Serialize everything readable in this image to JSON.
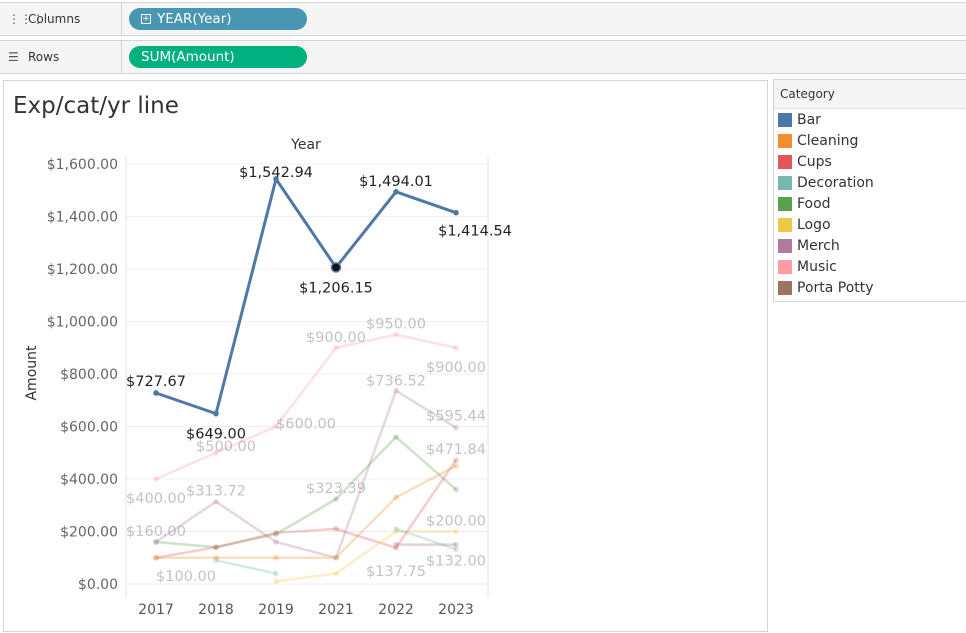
{
  "shelves": {
    "columns": {
      "label": "Columns",
      "icon": "columns-icon",
      "pill": "YEAR(Year)",
      "pill_color": "#4996b2"
    },
    "rows": {
      "label": "Rows",
      "icon": "rows-icon",
      "pill": "SUM(Amount)",
      "pill_color": "#00b180"
    }
  },
  "viz": {
    "title": "Exp/cat/yr line"
  },
  "legend": {
    "title": "Category",
    "items": [
      {
        "label": "Bar",
        "color": "#4e79a7"
      },
      {
        "label": "Cleaning",
        "color": "#f28e2b"
      },
      {
        "label": "Cups",
        "color": "#e15759"
      },
      {
        "label": "Decoration",
        "color": "#76b7b2"
      },
      {
        "label": "Food",
        "color": "#59a14f"
      },
      {
        "label": "Logo",
        "color": "#edc948"
      },
      {
        "label": "Merch",
        "color": "#b07aa1"
      },
      {
        "label": "Music",
        "color": "#ff9da7"
      },
      {
        "label": "Porta Potty",
        "color": "#9c755f"
      }
    ]
  },
  "chart_data": {
    "type": "line",
    "title": "Exp/cat/yr line",
    "xlabel": "Year",
    "ylabel": "Amount",
    "categories": [
      "2017",
      "2018",
      "2019",
      "2021",
      "2022",
      "2023"
    ],
    "y_ticks": [
      "$0.00",
      "$200.00",
      "$400.00",
      "$600.00",
      "$800.00",
      "$1,000.00",
      "$1,200.00",
      "$1,400.00",
      "$1,600.00"
    ],
    "ylim": [
      0,
      1600
    ],
    "grid": true,
    "legend_position": "right",
    "highlighted_series": "Bar",
    "series": [
      {
        "name": "Bar",
        "color": "#4e79a7",
        "values": [
          727.67,
          649.0,
          1542.94,
          1206.15,
          1494.01,
          1414.54
        ],
        "labels": [
          "$727.67",
          "$649.00",
          "$1,542.94",
          "$1,206.15",
          "$1,494.01",
          "$1,414.54"
        ],
        "selected_index": 3
      },
      {
        "name": "Music",
        "color": "#ff9da7",
        "values": [
          400.0,
          500.0,
          600.0,
          900.0,
          950.0,
          900.0
        ],
        "labels": [
          "$400.00",
          "$500.00",
          "$600.00",
          "$900.00",
          "$950.00",
          "$900.00"
        ]
      },
      {
        "name": "Merch",
        "color": "#b07aa1",
        "values": [
          160.0,
          313.72,
          160,
          100,
          736.52,
          595.44
        ],
        "labels": [
          "$160.00",
          "$313.72",
          "",
          "",
          "$736.52",
          "$595.44"
        ]
      },
      {
        "name": "Food",
        "color": "#59a14f",
        "values": [
          160,
          140,
          190,
          323.39,
          560,
          360
        ],
        "labels": [
          "",
          "",
          "",
          "$323.39",
          "",
          ""
        ]
      },
      {
        "name": "Cups",
        "color": "#e15759",
        "values": [
          100,
          140,
          195,
          210,
          137.75,
          471.84
        ],
        "labels": [
          "",
          "",
          "",
          "",
          "$137.75",
          "$471.84"
        ]
      },
      {
        "name": "Cleaning",
        "color": "#f28e2b",
        "values": [
          100,
          100,
          100,
          100,
          330,
          450
        ],
        "labels": [
          "$100.00",
          "",
          "",
          "",
          "",
          ""
        ]
      },
      {
        "name": "Logo",
        "color": "#edc948",
        "values": [
          null,
          null,
          10,
          40,
          200.0,
          200.0
        ],
        "labels": [
          "",
          "",
          "",
          "",
          "",
          "$200.00"
        ]
      },
      {
        "name": "Decoration",
        "color": "#76b7b2",
        "values": [
          null,
          90,
          40,
          null,
          210,
          132.0
        ],
        "labels": [
          "",
          "",
          "",
          "",
          "",
          "$132.00"
        ]
      },
      {
        "name": "Porta Potty",
        "color": "#9c755f",
        "values": [
          null,
          null,
          null,
          null,
          150,
          150
        ],
        "labels": [
          "",
          "",
          "",
          "",
          "",
          ""
        ]
      }
    ]
  }
}
